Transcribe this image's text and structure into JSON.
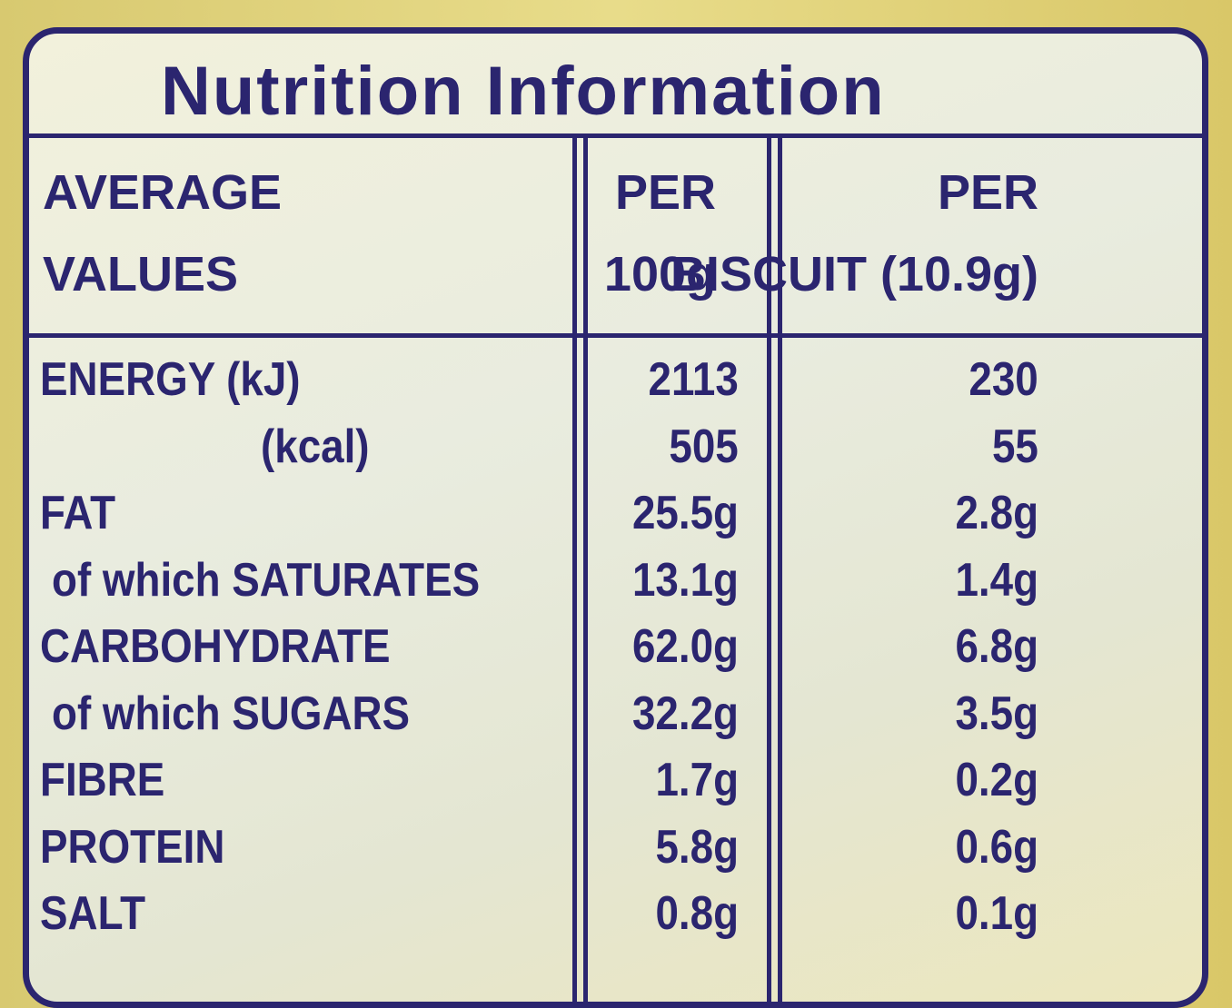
{
  "title": "Nutrition Information",
  "table": {
    "header": [
      [
        "AVERAGE",
        "VALUES"
      ],
      [
        "PER",
        "100g"
      ],
      [
        "PER",
        "BISCUIT (10.9g)"
      ]
    ],
    "rows": [
      [
        "ENERGY (kJ)",
        "2113",
        "230"
      ],
      [
        "(kcal)",
        "505",
        "55"
      ],
      [
        "FAT",
        "25.5g",
        "2.8g"
      ],
      [
        "of which SATURATES",
        "13.1g",
        "1.4g"
      ],
      [
        "CARBOHYDRATE",
        "62.0g",
        "6.8g"
      ],
      [
        "of which SUGARS",
        "32.2g",
        "3.5g"
      ],
      [
        "FIBRE",
        "1.7g",
        "0.2g"
      ],
      [
        "PROTEIN",
        "5.8g",
        "0.6g"
      ],
      [
        "SALT",
        "0.8g",
        "0.1g"
      ]
    ]
  }
}
